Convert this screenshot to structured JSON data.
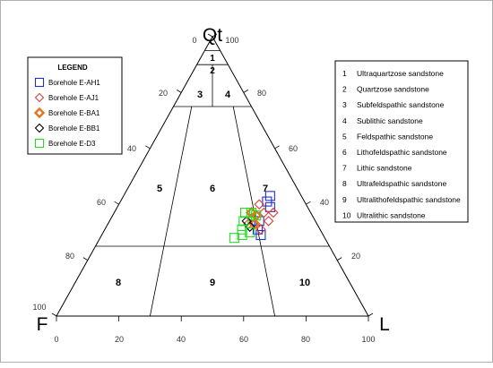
{
  "chart_data": {
    "type": "scatter",
    "diagram": "ternary",
    "apex_labels": {
      "top": "Qt",
      "left": "F",
      "right": "L"
    },
    "left_edge_ticks": [
      "0",
      "20",
      "40",
      "60",
      "80",
      "100"
    ],
    "right_edge_ticks": [
      "100",
      "80",
      "60",
      "40",
      "20"
    ],
    "bottom_ticks": [
      "0",
      "20",
      "40",
      "60",
      "80",
      "100"
    ],
    "field_numbers": [
      "1",
      "2",
      "3",
      "4",
      "5",
      "6",
      "7",
      "8",
      "9",
      "10"
    ],
    "legend_title": "LEGEND",
    "legend_position": "top-left",
    "series": [
      {
        "name": "Borehole E-AH1",
        "marker": "square-open",
        "color": "#1f2fd6",
        "points": [
          [
            47,
            43
          ],
          [
            47,
            41
          ],
          [
            49,
            39
          ],
          [
            48,
            34
          ],
          [
            49,
            31
          ],
          [
            51,
            29
          ]
        ]
      },
      {
        "name": "Borehole E-AJ1",
        "marker": "diamond-open",
        "color": "#e0403a",
        "points": [
          [
            45,
            40
          ],
          [
            45,
            35
          ],
          [
            51,
            34
          ],
          [
            50,
            31
          ],
          [
            45,
            33
          ],
          [
            51,
            37
          ],
          [
            48,
            37
          ]
        ]
      },
      {
        "name": "Borehole E-BA1",
        "marker": "diamond-open-bold",
        "color": "#e8731c",
        "points": [
          [
            44,
            37
          ],
          [
            46,
            36
          ],
          [
            47,
            33
          ]
        ]
      },
      {
        "name": "Borehole E-BB1",
        "marker": "diamond-open",
        "color": "#000000",
        "points": [
          [
            44,
            34
          ],
          [
            46,
            32
          ]
        ]
      },
      {
        "name": "Borehole E-D3",
        "marker": "square-open",
        "color": "#22dd22",
        "points": [
          [
            42,
            37
          ],
          [
            43,
            34
          ],
          [
            44,
            31
          ],
          [
            45,
            29
          ],
          [
            46,
            36
          ],
          [
            47,
            30
          ],
          [
            43,
            28
          ],
          [
            44,
            37
          ]
        ]
      }
    ]
  },
  "classification": [
    {
      "num": "1",
      "label": "Ultraquartzose sandstone"
    },
    {
      "num": "2",
      "label": "Quartzose sandstone"
    },
    {
      "num": "3",
      "label": "Subfeldspathic sandstone"
    },
    {
      "num": "4",
      "label": "Sublithic sandstone"
    },
    {
      "num": "5",
      "label": "Feldspathic sandstone"
    },
    {
      "num": "6",
      "label": "Lithofeldspathic sandstone"
    },
    {
      "num": "7",
      "label": "Lithic sandstone"
    },
    {
      "num": "8",
      "label": "Ultrafeldspathic sandstone"
    },
    {
      "num": "9",
      "label": "Ultralithofeldspathic sandstone"
    },
    {
      "num": "10",
      "label": "Ultralithic sandstone"
    }
  ]
}
